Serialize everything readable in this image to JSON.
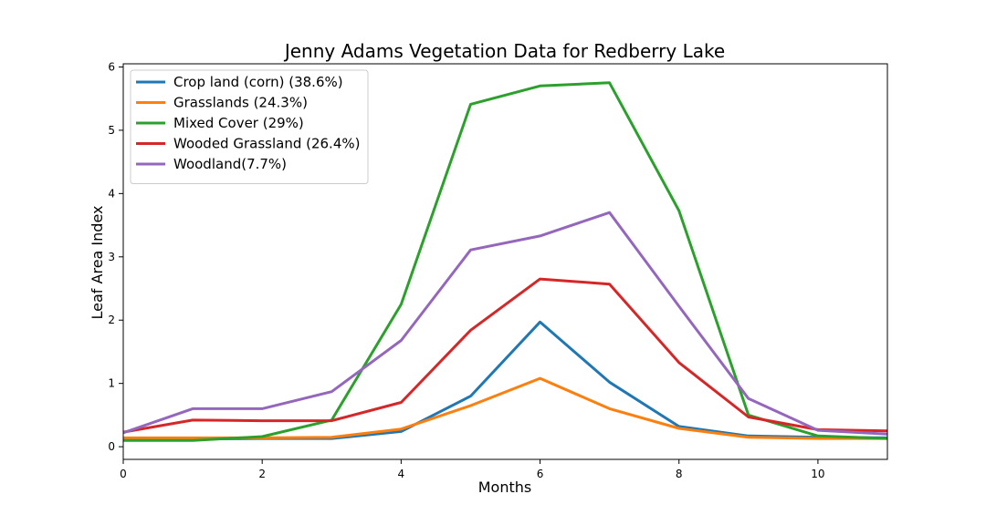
{
  "chart_data": {
    "type": "line",
    "title": "Jenny Adams Vegetation Data for Redberry Lake",
    "xlabel": "Months",
    "ylabel": "Leaf Area Index",
    "xlim": [
      0,
      11
    ],
    "ylim": [
      -0.2,
      6.05
    ],
    "x_ticks": [
      0,
      2,
      4,
      6,
      8,
      10
    ],
    "y_ticks": [
      0,
      1,
      2,
      3,
      4,
      5,
      6
    ],
    "grid": false,
    "legend_position": "top-left",
    "x": [
      0,
      1,
      2,
      3,
      4,
      5,
      6,
      7,
      8,
      9,
      10,
      11
    ],
    "series": [
      {
        "name": "Crop land (corn) (38.6%)",
        "color": "#1f77b4",
        "values": [
          0.12,
          0.12,
          0.13,
          0.13,
          0.24,
          0.8,
          1.97,
          1.02,
          0.32,
          0.17,
          0.15,
          0.14
        ]
      },
      {
        "name": "Grasslands (24.3%)",
        "color": "#ff7f0e",
        "values": [
          0.14,
          0.14,
          0.14,
          0.15,
          0.28,
          0.65,
          1.08,
          0.6,
          0.29,
          0.15,
          0.13,
          0.13
        ]
      },
      {
        "name": "Mixed Cover (29%)",
        "color": "#2ca02c",
        "values": [
          0.1,
          0.1,
          0.16,
          0.42,
          2.25,
          5.41,
          5.7,
          5.75,
          3.73,
          0.5,
          0.17,
          0.13
        ]
      },
      {
        "name": "Wooded Grassland (26.4%)",
        "color": "#d62728",
        "values": [
          0.23,
          0.42,
          0.41,
          0.41,
          0.7,
          1.84,
          2.65,
          2.57,
          1.33,
          0.47,
          0.27,
          0.25
        ]
      },
      {
        "name": "Woodland(7.7%)",
        "color": "#9467bd",
        "values": [
          0.22,
          0.6,
          0.6,
          0.87,
          1.68,
          3.11,
          3.33,
          3.7,
          2.22,
          0.76,
          0.26,
          0.2
        ]
      }
    ]
  }
}
